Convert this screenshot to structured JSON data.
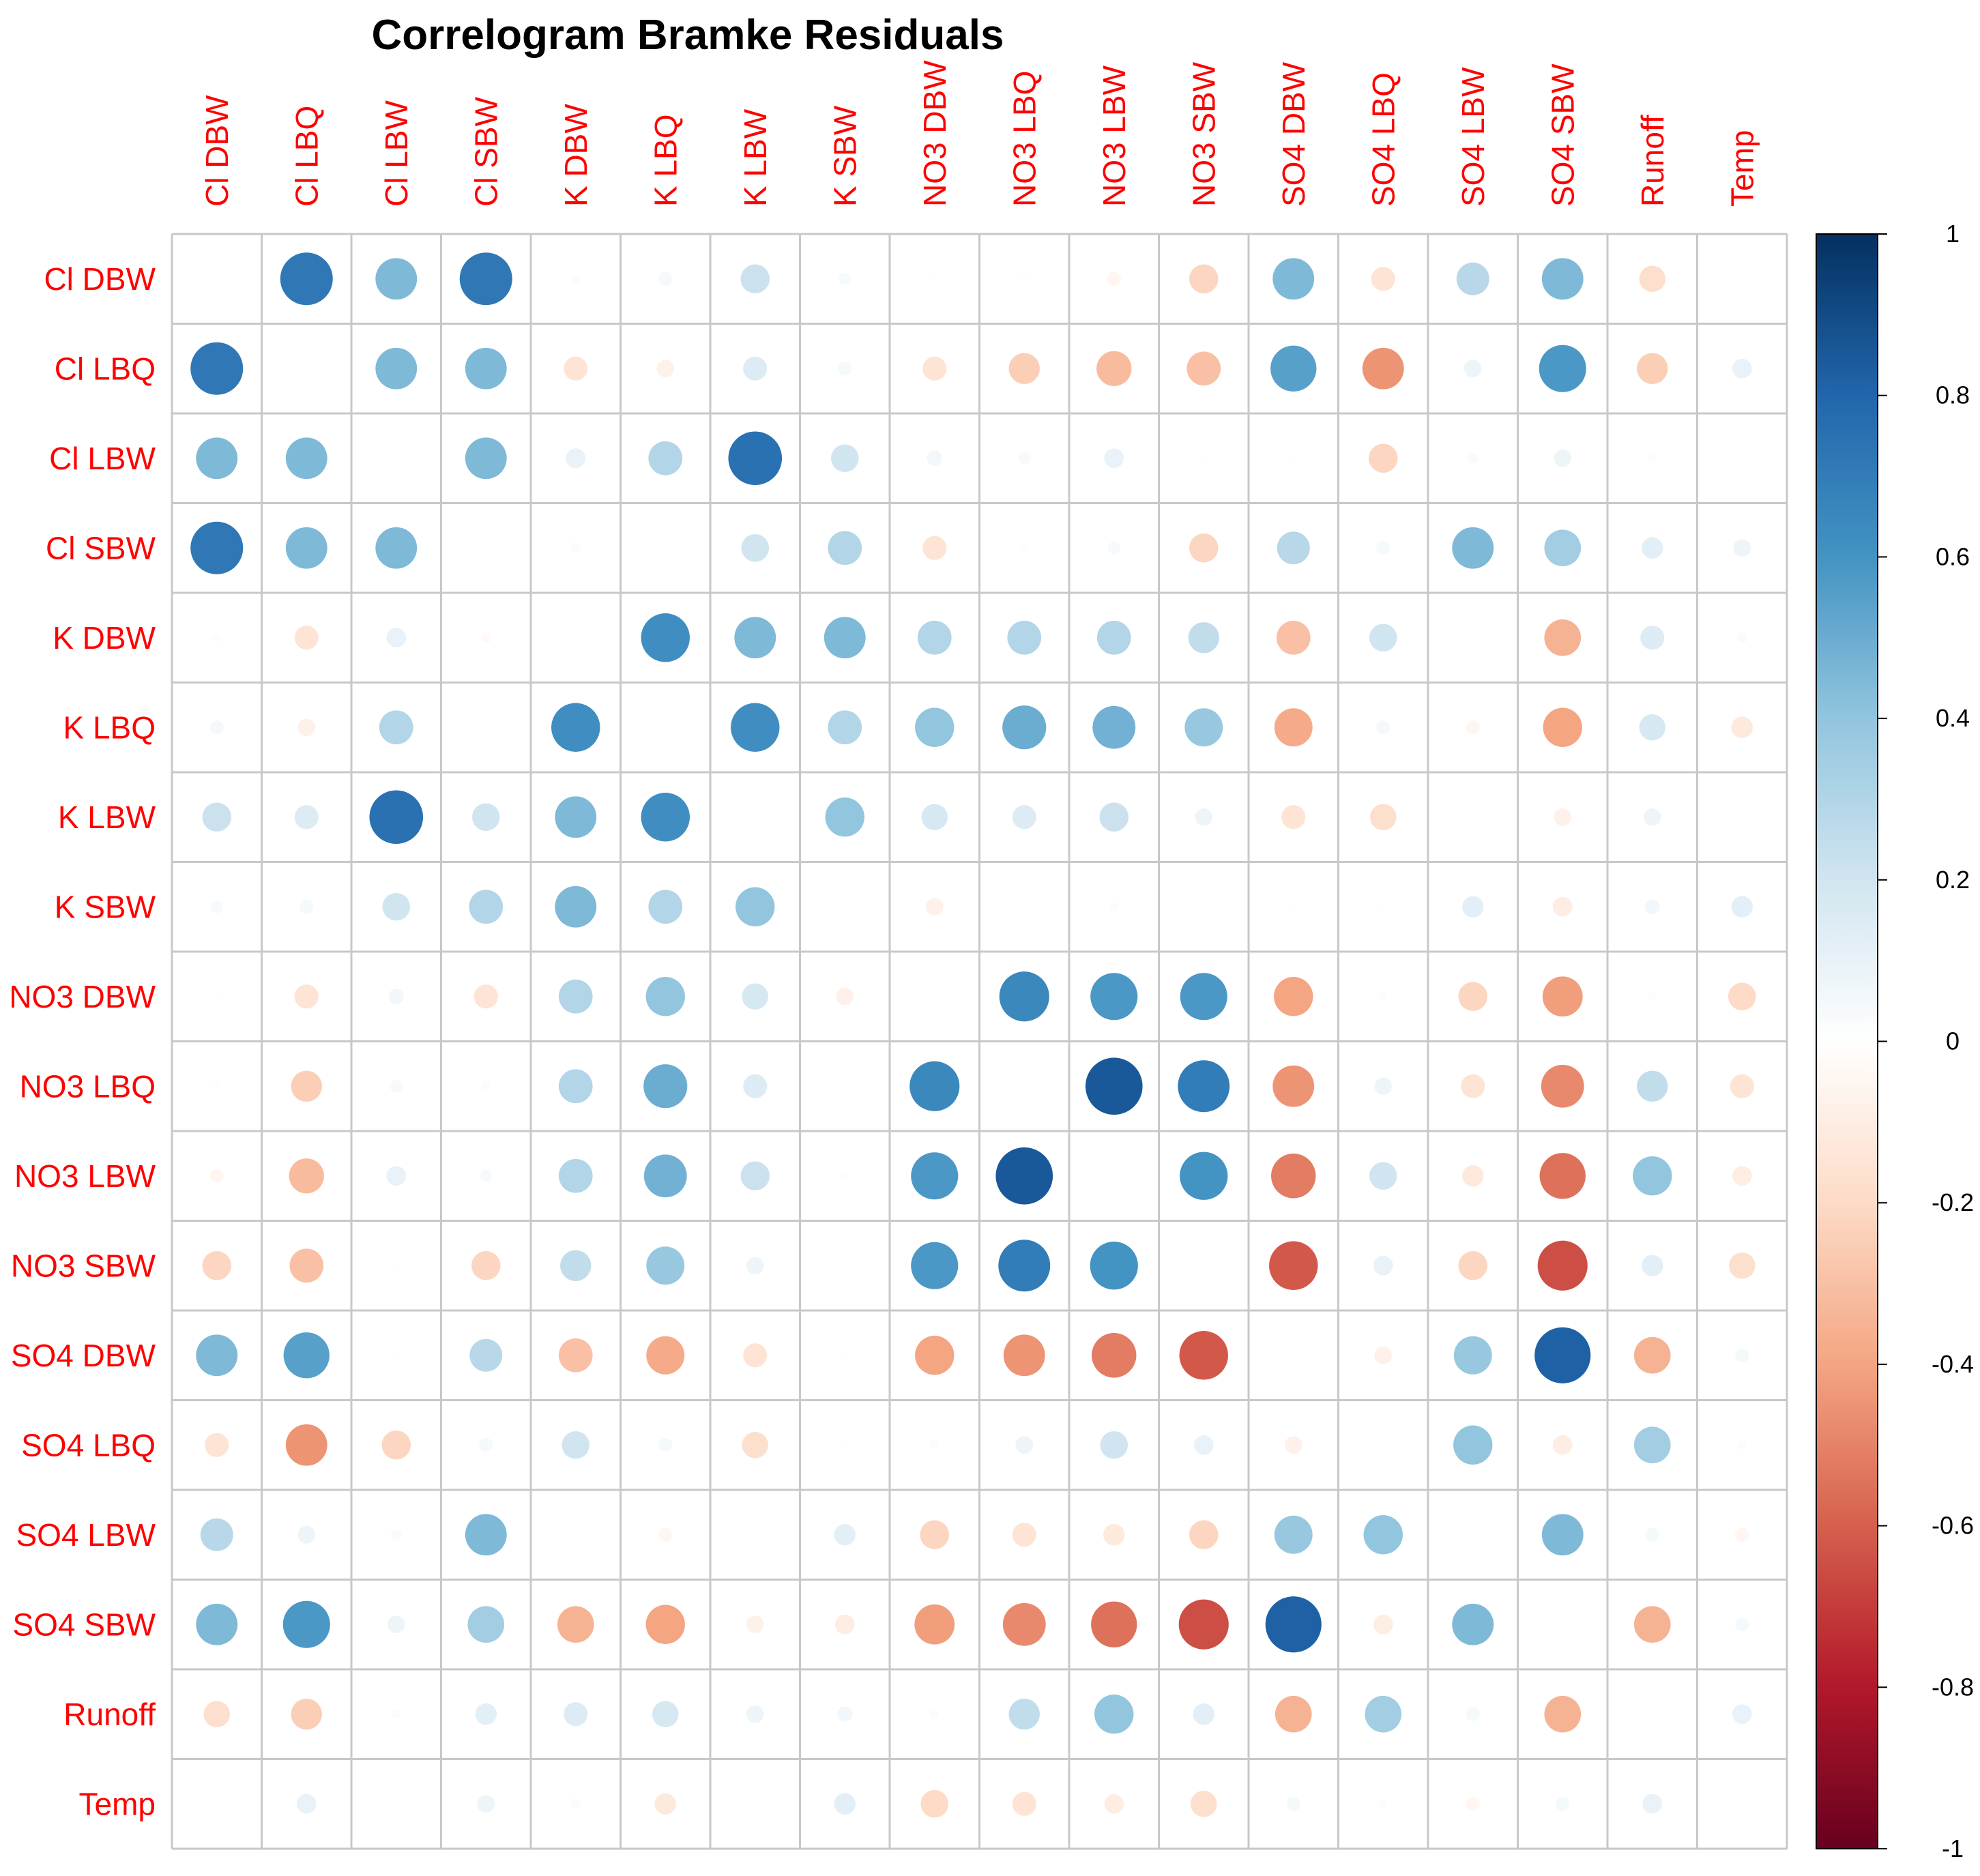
{
  "chart_data": {
    "type": "heatmap",
    "title": "Correlogram Bramke Residuals",
    "variables": [
      "Cl DBW",
      "Cl LBQ",
      "Cl LBW",
      "Cl SBW",
      "K DBW",
      "K LBQ",
      "K LBW",
      "K SBW",
      "NO3 DBW",
      "NO3 LBQ",
      "NO3 LBW",
      "NO3 SBW",
      "SO4 DBW",
      "SO4 LBQ",
      "SO4 LBW",
      "SO4 SBW",
      "Runoff",
      "Temp"
    ],
    "matrix": [
      [
        1.0,
        0.72,
        0.45,
        0.72,
        -0.02,
        0.05,
        0.22,
        0.04,
        0.01,
        -0.01,
        -0.05,
        -0.22,
        0.45,
        -0.15,
        0.28,
        0.45,
        -0.18,
        0.0
      ],
      [
        0.72,
        1.0,
        0.45,
        0.45,
        -0.15,
        -0.08,
        0.15,
        0.05,
        -0.15,
        -0.25,
        -0.32,
        -0.3,
        0.55,
        -0.45,
        0.08,
        0.58,
        -0.25,
        0.1
      ],
      [
        0.45,
        0.45,
        1.0,
        0.45,
        0.1,
        0.3,
        0.75,
        0.2,
        0.06,
        0.04,
        0.1,
        0.01,
        0.01,
        -0.22,
        0.03,
        0.08,
        0.02,
        0.0
      ],
      [
        0.72,
        0.45,
        0.45,
        1.0,
        -0.03,
        0.0,
        0.2,
        0.3,
        -0.15,
        -0.02,
        0.04,
        -0.22,
        0.28,
        0.05,
        0.45,
        0.35,
        0.12,
        0.08
      ],
      [
        -0.02,
        -0.15,
        0.1,
        -0.03,
        1.0,
        0.62,
        0.45,
        0.45,
        0.3,
        0.3,
        0.3,
        0.25,
        -0.3,
        0.2,
        0.0,
        -0.35,
        0.15,
        -0.03
      ],
      [
        0.05,
        -0.08,
        0.3,
        0.0,
        0.62,
        1.0,
        0.62,
        0.3,
        0.4,
        0.5,
        0.48,
        0.38,
        -0.38,
        0.05,
        -0.05,
        -0.4,
        0.18,
        -0.12
      ],
      [
        0.22,
        0.15,
        0.75,
        0.2,
        0.45,
        0.62,
        1.0,
        0.4,
        0.18,
        0.15,
        0.22,
        0.08,
        -0.15,
        -0.18,
        0.0,
        -0.08,
        0.08,
        0.0
      ],
      [
        0.04,
        0.05,
        0.2,
        0.3,
        0.45,
        0.3,
        0.4,
        1.0,
        -0.08,
        0.0,
        0.02,
        0.0,
        0.01,
        0.01,
        0.12,
        -0.1,
        0.06,
        0.12
      ],
      [
        0.01,
        -0.15,
        0.06,
        -0.15,
        0.3,
        0.4,
        0.18,
        -0.08,
        1.0,
        0.65,
        0.58,
        0.58,
        -0.4,
        -0.02,
        -0.22,
        -0.42,
        0.02,
        -0.2
      ],
      [
        -0.01,
        -0.25,
        0.04,
        -0.02,
        0.3,
        0.5,
        0.15,
        0.0,
        0.65,
        1.0,
        0.85,
        0.7,
        -0.45,
        0.08,
        -0.15,
        -0.48,
        0.25,
        -0.15
      ],
      [
        -0.05,
        -0.32,
        0.1,
        0.04,
        0.3,
        0.48,
        0.22,
        0.02,
        0.58,
        0.85,
        1.0,
        0.6,
        -0.52,
        0.2,
        -0.12,
        -0.55,
        0.4,
        -0.1
      ],
      [
        -0.22,
        -0.3,
        0.01,
        -0.22,
        0.25,
        0.38,
        0.08,
        0.0,
        0.58,
        0.7,
        0.6,
        1.0,
        -0.62,
        0.1,
        -0.22,
        -0.65,
        0.12,
        -0.18
      ],
      [
        0.45,
        0.55,
        0.01,
        0.28,
        -0.3,
        -0.38,
        -0.15,
        0.01,
        -0.4,
        -0.45,
        -0.52,
        -0.62,
        1.0,
        -0.08,
        0.38,
        0.82,
        -0.35,
        0.05
      ],
      [
        -0.15,
        -0.45,
        -0.22,
        0.05,
        0.2,
        0.05,
        -0.18,
        0.01,
        -0.02,
        0.08,
        0.2,
        0.1,
        -0.08,
        1.0,
        0.4,
        -0.1,
        0.35,
        -0.02
      ],
      [
        0.28,
        0.08,
        0.03,
        0.45,
        0.0,
        -0.05,
        0.0,
        0.12,
        -0.22,
        -0.15,
        -0.12,
        -0.22,
        0.38,
        0.4,
        1.0,
        0.45,
        0.05,
        -0.05
      ],
      [
        0.45,
        0.58,
        0.08,
        0.35,
        -0.35,
        -0.4,
        -0.08,
        -0.1,
        -0.42,
        -0.48,
        -0.55,
        -0.65,
        0.82,
        -0.1,
        0.45,
        1.0,
        -0.35,
        0.05
      ],
      [
        -0.18,
        -0.25,
        0.02,
        0.12,
        0.15,
        0.18,
        0.08,
        0.06,
        0.02,
        0.25,
        0.4,
        0.12,
        -0.35,
        0.35,
        0.05,
        -0.35,
        1.0,
        0.1
      ],
      [
        0.0,
        0.1,
        0.0,
        0.08,
        -0.03,
        -0.12,
        0.0,
        0.12,
        -0.2,
        -0.15,
        -0.1,
        -0.18,
        0.05,
        -0.02,
        -0.05,
        0.05,
        0.1,
        1.0
      ]
    ],
    "diagonal_shown": false,
    "color_scale": {
      "min": -1,
      "max": 1,
      "ticks": [
        "1",
        "0.8",
        "0.6",
        "0.4",
        "0.2",
        "0",
        "-0.2",
        "-0.4",
        "-0.6",
        "-0.8",
        "-1"
      ],
      "stops": [
        "#67001F",
        "#B2182B",
        "#D6604D",
        "#F4A582",
        "#FDDBC7",
        "#FFFFFF",
        "#D1E5F0",
        "#92C5DE",
        "#4393C3",
        "#2166AC",
        "#053061"
      ]
    },
    "label_color": "#FF0000",
    "grid_color": "#C8C8C8",
    "legend_position": "right"
  }
}
